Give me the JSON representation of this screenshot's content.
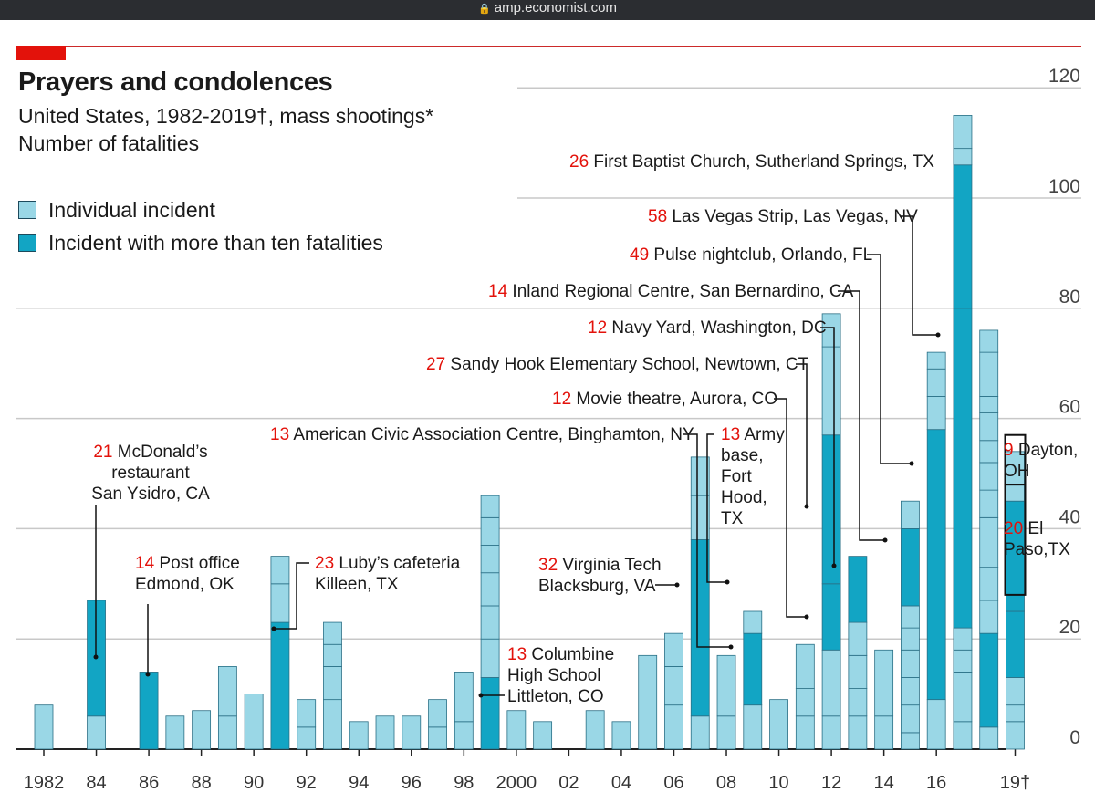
{
  "browser": {
    "url": "amp.economist.com"
  },
  "header": {
    "title": "Prayers and condolences",
    "subtitle_1": "United States, 1982-2019†, mass shootings*",
    "subtitle_2": "Number of fatalities"
  },
  "legend": {
    "individual": "Individual incident",
    "over_ten": "Incident with more than ten fatalities"
  },
  "colors": {
    "light": "#9ad7e6",
    "dark": "#12a5c4",
    "annotation_number": "#e3120b",
    "grid": "#c8c8c8",
    "divider": "#2a6f85"
  },
  "chart_data": {
    "type": "bar",
    "stacked": true,
    "title": "Prayers and condolences",
    "ylabel": "Number of fatalities",
    "ylim": [
      0,
      120
    ],
    "yticks": [
      0,
      20,
      40,
      60,
      80,
      100,
      120
    ],
    "xticks": [
      {
        "year": 1982,
        "label": "1982"
      },
      {
        "year": 1984,
        "label": "84"
      },
      {
        "year": 1986,
        "label": "86"
      },
      {
        "year": 1988,
        "label": "88"
      },
      {
        "year": 1990,
        "label": "90"
      },
      {
        "year": 1992,
        "label": "92"
      },
      {
        "year": 1994,
        "label": "94"
      },
      {
        "year": 1996,
        "label": "96"
      },
      {
        "year": 1998,
        "label": "98"
      },
      {
        "year": 2000,
        "label": "2000"
      },
      {
        "year": 2002,
        "label": "02"
      },
      {
        "year": 2004,
        "label": "04"
      },
      {
        "year": 2006,
        "label": "06"
      },
      {
        "year": 2008,
        "label": "08"
      },
      {
        "year": 2010,
        "label": "10"
      },
      {
        "year": 2012,
        "label": "12"
      },
      {
        "year": 2014,
        "label": "14"
      },
      {
        "year": 2016,
        "label": "16"
      },
      {
        "year": 2019,
        "label": "19†"
      }
    ],
    "years": [
      {
        "year": 1982,
        "segments": [
          8
        ]
      },
      {
        "year": 1984,
        "segments": [
          6,
          21
        ]
      },
      {
        "year": 1986,
        "segments": [
          14
        ]
      },
      {
        "year": 1987,
        "segments": [
          6
        ]
      },
      {
        "year": 1988,
        "segments": [
          7
        ]
      },
      {
        "year": 1989,
        "segments": [
          6,
          9
        ]
      },
      {
        "year": 1990,
        "segments": [
          10
        ]
      },
      {
        "year": 1991,
        "segments": [
          23,
          7,
          5
        ]
      },
      {
        "year": 1992,
        "segments": [
          4,
          5
        ]
      },
      {
        "year": 1993,
        "segments": [
          9,
          6,
          4,
          4
        ]
      },
      {
        "year": 1994,
        "segments": [
          5
        ]
      },
      {
        "year": 1995,
        "segments": [
          6
        ]
      },
      {
        "year": 1996,
        "segments": [
          6
        ]
      },
      {
        "year": 1997,
        "segments": [
          4,
          5
        ]
      },
      {
        "year": 1998,
        "segments": [
          5,
          5,
          4
        ]
      },
      {
        "year": 1999,
        "segments": [
          13,
          7,
          6,
          6,
          5,
          5,
          4
        ]
      },
      {
        "year": 2000,
        "segments": [
          7
        ]
      },
      {
        "year": 2001,
        "segments": [
          5
        ]
      },
      {
        "year": 2003,
        "segments": [
          7
        ]
      },
      {
        "year": 2004,
        "segments": [
          5
        ]
      },
      {
        "year": 2005,
        "segments": [
          10,
          7
        ]
      },
      {
        "year": 2006,
        "segments": [
          8,
          7,
          6
        ]
      },
      {
        "year": 2007,
        "segments": [
          6,
          32,
          8,
          7
        ]
      },
      {
        "year": 2008,
        "segments": [
          6,
          6,
          5
        ]
      },
      {
        "year": 2009,
        "segments": [
          8,
          13,
          4
        ]
      },
      {
        "year": 2010,
        "segments": [
          9
        ]
      },
      {
        "year": 2011,
        "segments": [
          6,
          5,
          8
        ]
      },
      {
        "year": 2012,
        "segments": [
          6,
          6,
          6,
          12,
          27,
          8,
          8,
          6
        ]
      },
      {
        "year": 2013,
        "segments": [
          6,
          5,
          6,
          6,
          12
        ]
      },
      {
        "year": 2014,
        "segments": [
          6,
          6,
          6
        ]
      },
      {
        "year": 2015,
        "segments": [
          3,
          5,
          5,
          5,
          4,
          4,
          14,
          5
        ]
      },
      {
        "year": 2016,
        "segments": [
          9,
          49,
          6,
          5,
          3
        ]
      },
      {
        "year": 2017,
        "segments": [
          5,
          5,
          4,
          4,
          4,
          58,
          26,
          3,
          6
        ]
      },
      {
        "year": 2018,
        "segments": [
          4,
          17,
          6,
          6,
          9,
          5,
          5,
          4,
          5,
          3,
          8,
          4
        ]
      },
      {
        "year": 2019,
        "segments": [
          5,
          3,
          5,
          12,
          20,
          9
        ]
      }
    ],
    "annotations": [
      {
        "number": "21",
        "lines": [
          "McDonald’s",
          "restaurant",
          "San Ysidro, CA"
        ]
      },
      {
        "number": "14",
        "lines": [
          "Post office",
          "Edmond, OK"
        ]
      },
      {
        "number": "23",
        "lines": [
          "Luby’s cafeteria",
          "Killeen, TX"
        ]
      },
      {
        "number": "13",
        "lines": [
          "Columbine",
          "High School",
          "Littleton, CO"
        ]
      },
      {
        "number": "32",
        "lines": [
          "Virginia Tech",
          "Blacksburg, VA"
        ]
      },
      {
        "number": "13",
        "lines": [
          "American Civic Association Centre, Binghamton, NY"
        ]
      },
      {
        "number": "13",
        "lines": [
          "Army",
          "base,",
          "Fort",
          "Hood,",
          "TX"
        ]
      },
      {
        "number": "12",
        "lines": [
          "Movie theatre, Aurora, CO"
        ]
      },
      {
        "number": "27",
        "lines": [
          "Sandy Hook Elementary School, Newtown, CT"
        ]
      },
      {
        "number": "12",
        "lines": [
          "Navy Yard, Washington, DC"
        ]
      },
      {
        "number": "14",
        "lines": [
          "Inland Regional Centre, San Bernardino, CA"
        ]
      },
      {
        "number": "49",
        "lines": [
          "Pulse nightclub, Orlando, FL"
        ]
      },
      {
        "number": "58",
        "lines": [
          "Las Vegas Strip, Las Vegas, NV"
        ]
      },
      {
        "number": "26",
        "lines": [
          "First Baptist Church, Sutherland Springs, TX"
        ]
      },
      {
        "number": "9",
        "lines": [
          "Dayton,",
          "OH"
        ]
      },
      {
        "number": "20",
        "lines": [
          "El",
          "Paso,TX"
        ]
      }
    ]
  }
}
